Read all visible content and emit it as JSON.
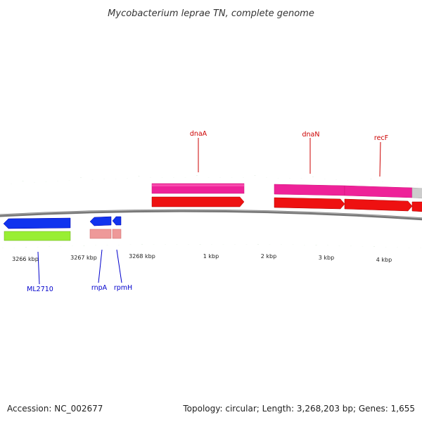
{
  "title": "Mycobacterium leprae TN, complete genome",
  "footer": {
    "accession": "Accession: NC_002677",
    "summary": "Topology: circular; Length: 3,268,203 bp; Genes: 1,655"
  },
  "colors": {
    "backbone": "#777777",
    "tick": "#1a7a1a",
    "gene_fwd": "#ee1111",
    "cds_fwd": "#ee2299",
    "gene_rev": "#1133ee",
    "cds_rev_green": "#99ee33",
    "cds_rev_pink": "#ee9999",
    "label_fwd": "#cc0000",
    "label_rev": "#0000cc",
    "grey_feature": "#cccccc"
  },
  "scale_labels": [
    "3266 kbp",
    "3267 kbp",
    "3268 kbp",
    "1 kbp",
    "2 kbp",
    "3 kbp",
    "4 kbp"
  ],
  "gene_labels": {
    "forward": [
      "dnaA",
      "dnaN",
      "recF"
    ],
    "reverse": [
      "ML2710",
      "rnpA",
      "rpmH"
    ]
  }
}
